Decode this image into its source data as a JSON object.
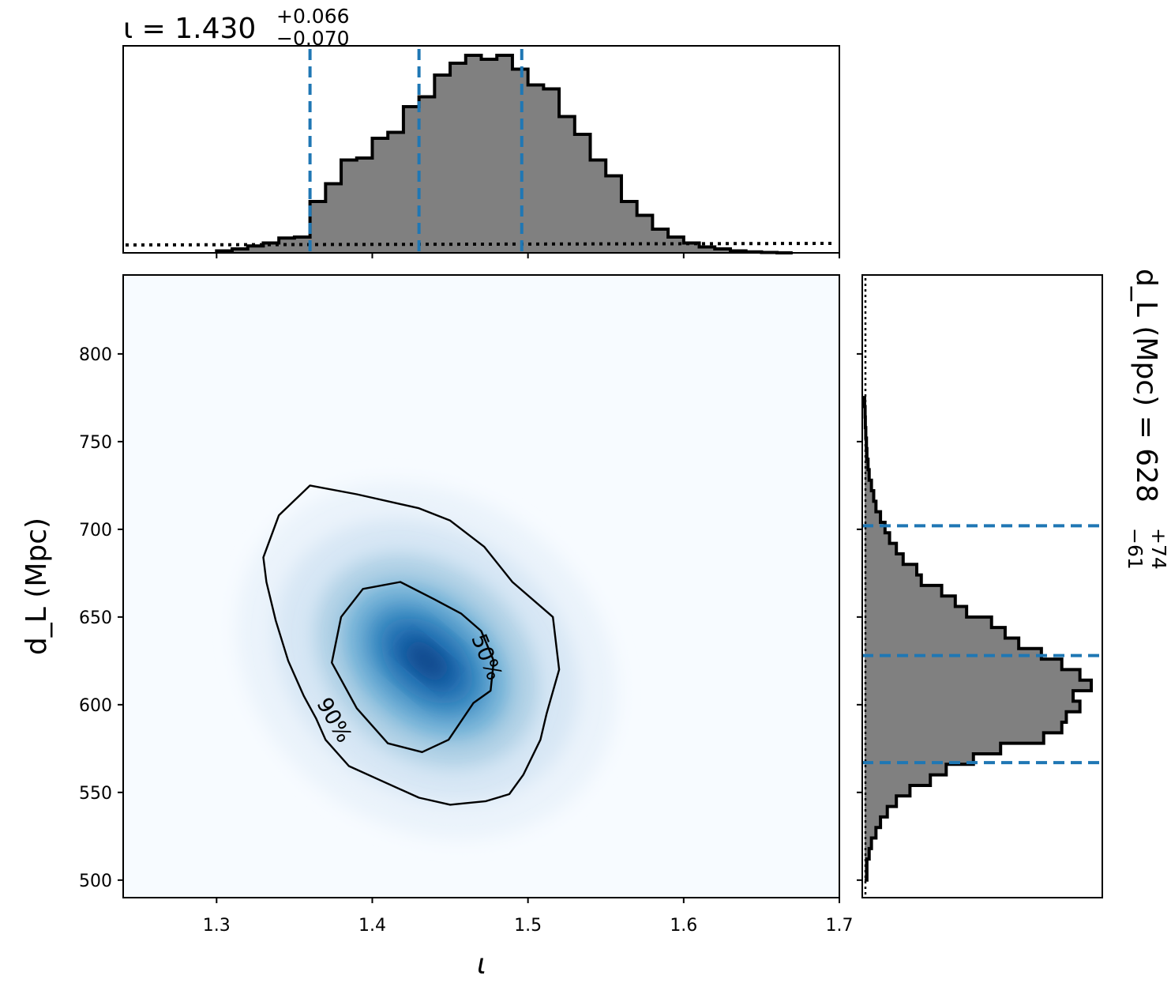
{
  "chart_data": [
    {
      "panel": "marginal-inclination",
      "type": "histogram",
      "title": {
        "symbol": "ι",
        "median": "1.430",
        "plus": "+0.066",
        "minus": "−0.070"
      },
      "xlim": [
        1.24,
        1.7
      ],
      "bin_edges_start": 1.3,
      "bin_width": 0.01,
      "posterior_density": [
        0.01,
        0.02,
        0.035,
        0.05,
        0.075,
        0.08,
        0.26,
        0.35,
        0.47,
        0.48,
        0.58,
        0.61,
        0.74,
        0.79,
        0.9,
        0.96,
        1.0,
        0.98,
        1.0,
        0.93,
        0.85,
        0.83,
        0.69,
        0.6,
        0.47,
        0.39,
        0.26,
        0.19,
        0.12,
        0.08,
        0.05,
        0.03,
        0.02,
        0.01,
        0.005,
        0.002,
        0.0
      ],
      "prior_density": 0.04,
      "quantile_lines": [
        1.36,
        1.43,
        1.496
      ],
      "colors": {
        "fill": "#808080",
        "edge": "#000000",
        "quantile": "#1f77b4"
      }
    },
    {
      "panel": "joint-density",
      "type": "heatmap",
      "xlabel": "ι",
      "ylabel": "d_L (Mpc)",
      "xlim": [
        1.24,
        1.7
      ],
      "ylim": [
        490,
        845
      ],
      "xticks": [
        "1.3",
        "1.4",
        "1.5",
        "1.6",
        "1.7"
      ],
      "yticks": [
        "500",
        "550",
        "600",
        "650",
        "700",
        "750",
        "800"
      ],
      "density_peak": {
        "x": 1.435,
        "y": 625
      },
      "colormap": "Blues",
      "contours": [
        {
          "label": "50%",
          "points": [
            [
              1.465,
              601
            ],
            [
              1.449,
              580
            ],
            [
              1.432,
              573
            ],
            [
              1.41,
              578
            ],
            [
              1.39,
              598
            ],
            [
              1.374,
              624
            ],
            [
              1.38,
              650
            ],
            [
              1.394,
              666
            ],
            [
              1.418,
              670
            ],
            [
              1.44,
              660
            ],
            [
              1.457,
              652
            ],
            [
              1.47,
              642
            ],
            [
              1.478,
              625
            ],
            [
              1.476,
              608
            ]
          ]
        },
        {
          "label": "90%",
          "points": [
            [
              1.37,
              580
            ],
            [
              1.385,
              565
            ],
            [
              1.405,
              557
            ],
            [
              1.43,
              547
            ],
            [
              1.45,
              543
            ],
            [
              1.473,
              545
            ],
            [
              1.488,
              549
            ],
            [
              1.497,
              560
            ],
            [
              1.508,
              580
            ],
            [
              1.512,
              595
            ],
            [
              1.52,
              620
            ],
            [
              1.516,
              650
            ],
            [
              1.49,
              670
            ],
            [
              1.472,
              690
            ],
            [
              1.45,
              705
            ],
            [
              1.43,
              712
            ],
            [
              1.39,
              720
            ],
            [
              1.36,
              725
            ],
            [
              1.34,
              708
            ],
            [
              1.33,
              684
            ],
            [
              1.332,
              670
            ],
            [
              1.338,
              648
            ],
            [
              1.346,
              625
            ],
            [
              1.356,
              605
            ],
            [
              1.364,
              592
            ]
          ]
        }
      ],
      "colors": {
        "contour": "#000000",
        "low": "#f7fbff",
        "high": "#08306b"
      }
    },
    {
      "panel": "marginal-distance",
      "type": "histogram",
      "orientation": "horizontal",
      "title": {
        "label": "d_L (Mpc) =",
        "median": "628",
        "plus": "+74",
        "minus": "−61"
      },
      "ylim": [
        490,
        845
      ],
      "bin_edges_start": 500,
      "bin_width": 6,
      "posterior_density": [
        0.01,
        0.01,
        0.02,
        0.03,
        0.05,
        0.07,
        0.1,
        0.14,
        0.2,
        0.29,
        0.36,
        0.48,
        0.6,
        0.79,
        0.87,
        0.89,
        0.95,
        0.92,
        1.0,
        0.95,
        0.87,
        0.78,
        0.68,
        0.62,
        0.56,
        0.45,
        0.4,
        0.34,
        0.25,
        0.23,
        0.17,
        0.14,
        0.11,
        0.09,
        0.07,
        0.05,
        0.04,
        0.03,
        0.02,
        0.015,
        0.01,
        0.008,
        0.005,
        0.003,
        0.002,
        0.0
      ],
      "prior_density": 0.01,
      "quantile_lines": [
        567,
        628,
        702
      ],
      "colors": {
        "fill": "#808080",
        "edge": "#000000",
        "quantile": "#1f77b4"
      }
    }
  ]
}
